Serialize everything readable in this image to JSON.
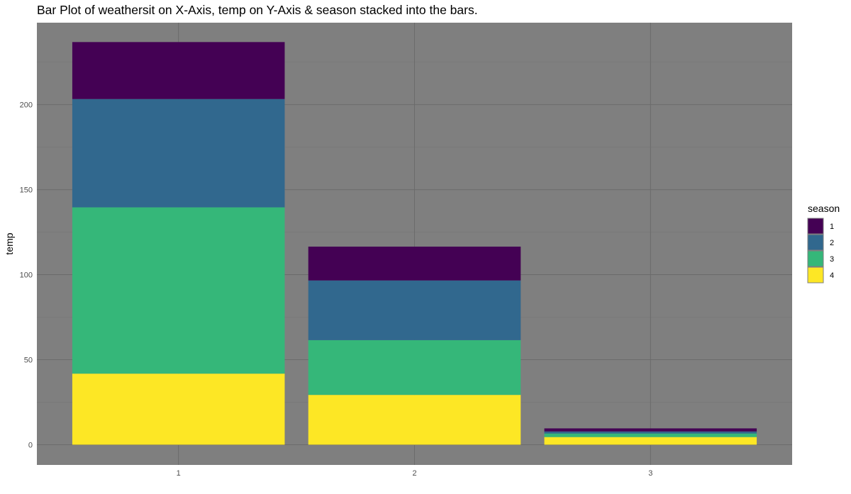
{
  "chart_data": {
    "type": "bar",
    "stacked": true,
    "title": "Bar Plot of weathersit on X-Axis, temp on Y-Axis & season stacked into the bars.",
    "xlabel": "",
    "ylabel": "temp",
    "categories": [
      "1",
      "2",
      "3"
    ],
    "ylim": [
      -11.9,
      248.2
    ],
    "yticks": [
      0,
      50,
      100,
      150,
      200
    ],
    "grid": true,
    "legend": {
      "title": "season",
      "position": "right",
      "entries": [
        "1",
        "2",
        "3",
        "4"
      ]
    },
    "series": [
      {
        "name": "4",
        "values": [
          41.8,
          29.3,
          4.5
        ],
        "color": "#FDE725"
      },
      {
        "name": "3",
        "values": [
          97.8,
          32.2,
          2.1
        ],
        "color": "#35B779"
      },
      {
        "name": "2",
        "values": [
          63.7,
          35.1,
          1.2
        ],
        "color": "#31688E"
      },
      {
        "name": "1",
        "values": [
          33.5,
          19.9,
          1.8
        ],
        "color": "#440154"
      }
    ],
    "colors": {
      "panel_background": "#7F7F7F",
      "major_grid": "#6B6B6B",
      "minor_grid": "#767676",
      "tick_text": "#4D4D4D",
      "title_text": "#000000"
    }
  }
}
